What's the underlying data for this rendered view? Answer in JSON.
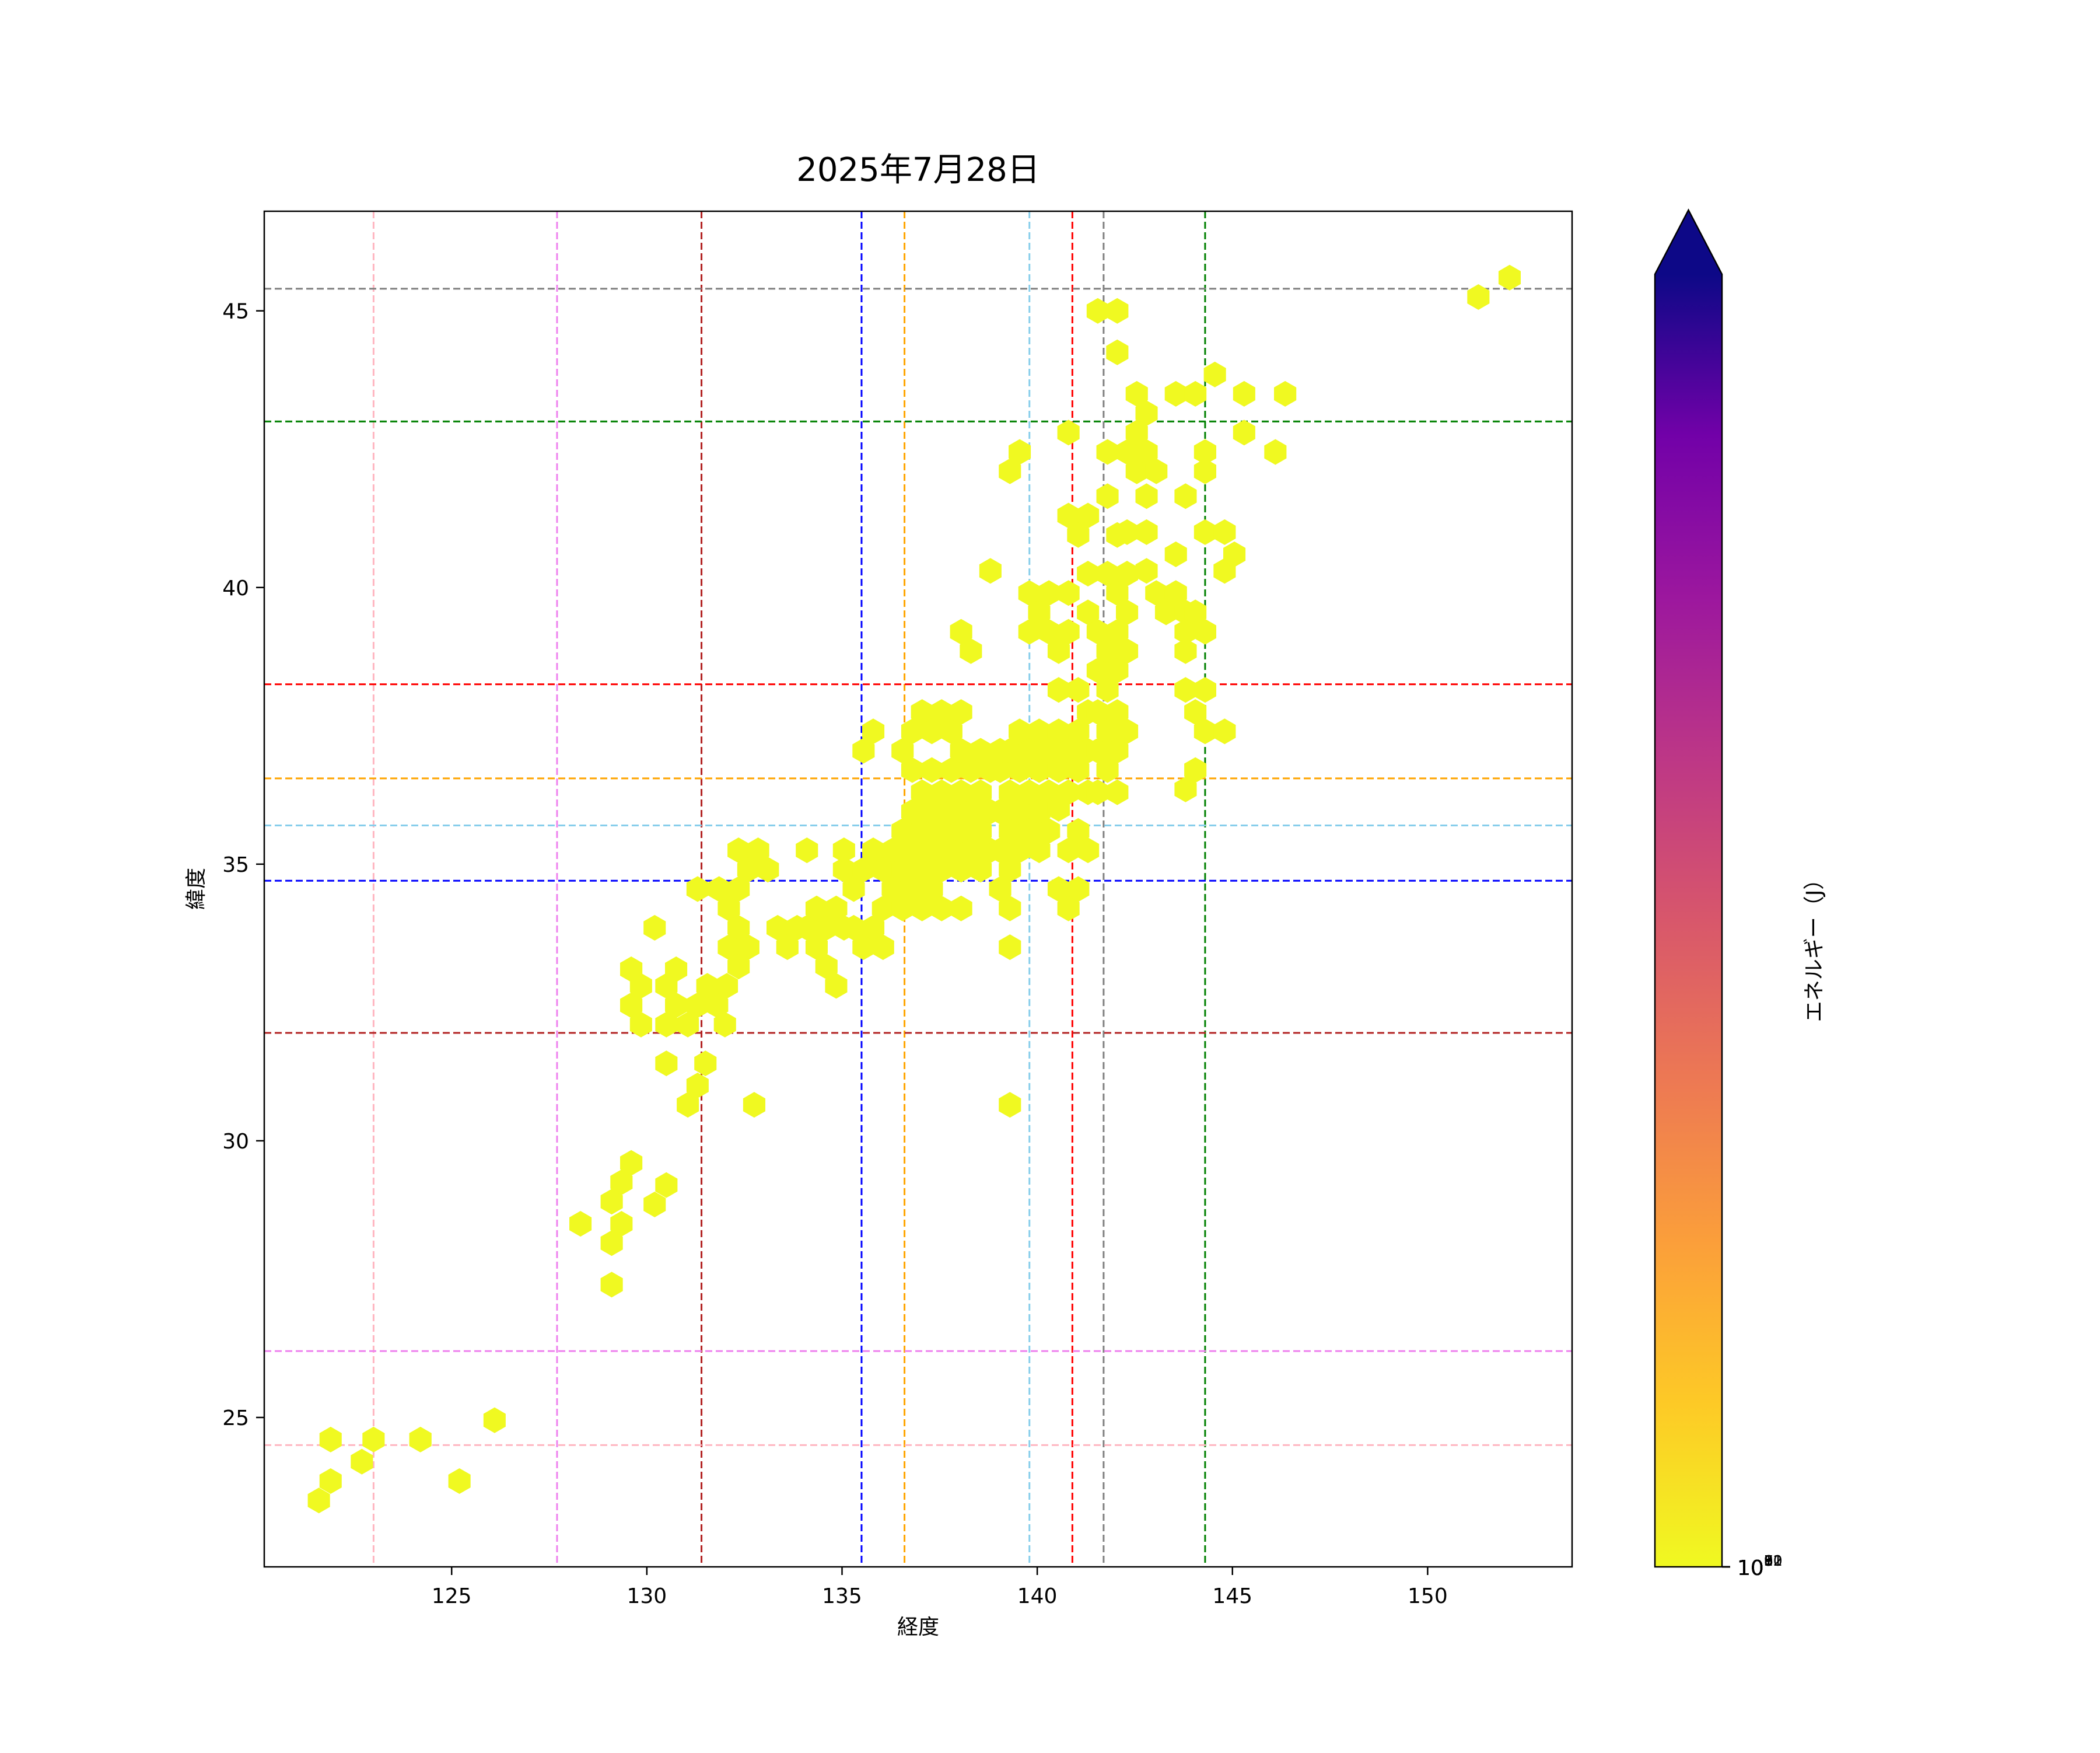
{
  "chart_data": {
    "type": "hexbin",
    "title": "2025年7月28日",
    "xlabel": "経度",
    "ylabel": "緯度",
    "xlim": [
      120.2,
      153.7
    ],
    "ylim": [
      22.3,
      46.8
    ],
    "xticks": [
      125,
      130,
      135,
      140,
      145,
      150
    ],
    "yticks": [
      25,
      30,
      35,
      40,
      45
    ],
    "colorbar": {
      "label": "エネルギー（J）",
      "scale": "log",
      "range": [
        1e-16,
        0
      ],
      "ticks": [
        {
          "exp": 5,
          "label": "10",
          "sup": "5"
        },
        {
          "exp": 6,
          "label": "10",
          "sup": "6"
        },
        {
          "exp": 7,
          "label": "10",
          "sup": "7"
        },
        {
          "exp": 8,
          "label": "10",
          "sup": "8"
        },
        {
          "exp": 9,
          "label": "10",
          "sup": "9"
        },
        {
          "exp": 10,
          "label": "10",
          "sup": "10"
        },
        {
          "exp": 11,
          "label": "10",
          "sup": "11"
        },
        {
          "exp": 12,
          "label": "10",
          "sup": "12"
        }
      ],
      "extend": "max",
      "colormap": "plasma_r"
    },
    "vlines": [
      {
        "x": 123.0,
        "color": "#ffb6c1"
      },
      {
        "x": 127.7,
        "color": "#ee82ee"
      },
      {
        "x": 131.4,
        "color": "#b22222"
      },
      {
        "x": 135.5,
        "color": "#0000ff"
      },
      {
        "x": 136.6,
        "color": "#ffa500"
      },
      {
        "x": 139.8,
        "color": "#87ceeb"
      },
      {
        "x": 140.9,
        "color": "#ff0000"
      },
      {
        "x": 141.7,
        "color": "#808080"
      },
      {
        "x": 144.3,
        "color": "#008000"
      }
    ],
    "hlines": [
      {
        "y": 45.4,
        "color": "#808080"
      },
      {
        "y": 43.0,
        "color": "#008000"
      },
      {
        "y": 38.25,
        "color": "#ff0000"
      },
      {
        "y": 36.55,
        "color": "#ffa500"
      },
      {
        "y": 35.7,
        "color": "#87ceeb"
      },
      {
        "y": 34.7,
        "color": "#0000ff"
      },
      {
        "y": 31.95,
        "color": "#b22222"
      },
      {
        "y": 26.2,
        "color": "#ee82ee"
      },
      {
        "y": 24.5,
        "color": "#ffb6c1"
      }
    ],
    "bins": [
      [
        121.6,
        23.5,
        9.3
      ],
      [
        121.9,
        23.85,
        9.5
      ],
      [
        121.9,
        24.6,
        8.7
      ],
      [
        122.7,
        24.2,
        8.8
      ],
      [
        123.0,
        24.6,
        6.6
      ],
      [
        124.2,
        24.6,
        6.0
      ],
      [
        125.2,
        23.85,
        8.5
      ],
      [
        126.1,
        24.95,
        8.6
      ],
      [
        128.3,
        28.5,
        8.5
      ],
      [
        129.1,
        28.15,
        6.8
      ],
      [
        129.1,
        28.9,
        10.4
      ],
      [
        129.1,
        27.4,
        7.6
      ],
      [
        129.35,
        29.25,
        10.0
      ],
      [
        129.35,
        28.5,
        9.0
      ],
      [
        129.6,
        29.6,
        8.6
      ],
      [
        130.2,
        28.85,
        7.8
      ],
      [
        130.5,
        29.2,
        8.8
      ],
      [
        129.6,
        33.1,
        5.7
      ],
      [
        129.6,
        32.45,
        6.7
      ],
      [
        129.85,
        32.1,
        6.7
      ],
      [
        129.85,
        32.8,
        7.5
      ],
      [
        130.2,
        33.85,
        6.8
      ],
      [
        130.5,
        32.8,
        6.0
      ],
      [
        130.5,
        32.1,
        5.3
      ],
      [
        130.75,
        32.45,
        6.7
      ],
      [
        130.75,
        33.1,
        6.0
      ],
      [
        130.5,
        31.4,
        6.5
      ],
      [
        131.05,
        30.65,
        7.8
      ],
      [
        131.3,
        31.0,
        8.0
      ],
      [
        131.5,
        31.4,
        8.8
      ],
      [
        131.05,
        32.1,
        6.8
      ],
      [
        131.3,
        32.45,
        8.6
      ],
      [
        131.55,
        32.8,
        6.3
      ],
      [
        131.8,
        32.45,
        6.9
      ],
      [
        132.0,
        32.1,
        6.6
      ],
      [
        132.05,
        32.8,
        7.6
      ],
      [
        131.3,
        34.55,
        6.1
      ],
      [
        131.85,
        34.55,
        5.6
      ],
      [
        132.1,
        34.2,
        5.5
      ],
      [
        132.35,
        34.55,
        5.6
      ],
      [
        132.35,
        33.85,
        5.8
      ],
      [
        132.6,
        33.5,
        7.0
      ],
      [
        132.1,
        33.5,
        6.4
      ],
      [
        132.35,
        33.15,
        7.5
      ],
      [
        132.75,
        30.65,
        9.4
      ],
      [
        132.35,
        35.25,
        5.5
      ],
      [
        132.6,
        34.9,
        6.3
      ],
      [
        132.85,
        35.25,
        6.0
      ],
      [
        133.1,
        34.9,
        6.3
      ],
      [
        133.35,
        33.85,
        6.3
      ],
      [
        133.6,
        33.5,
        5.6
      ],
      [
        133.85,
        33.85,
        6.7
      ],
      [
        134.1,
        33.85,
        6.3
      ],
      [
        134.1,
        35.25,
        5.8
      ],
      [
        134.35,
        34.2,
        6.4
      ],
      [
        134.35,
        33.5,
        6.3
      ],
      [
        134.6,
        33.85,
        6.3
      ],
      [
        134.6,
        33.15,
        6.2
      ],
      [
        134.85,
        32.8,
        6.7
      ],
      [
        134.85,
        34.2,
        6.6
      ],
      [
        135.05,
        33.85,
        6.5
      ],
      [
        135.05,
        34.9,
        7.0
      ],
      [
        135.05,
        35.25,
        6.8
      ],
      [
        135.3,
        33.85,
        7.6
      ],
      [
        135.3,
        34.55,
        6.5
      ],
      [
        135.55,
        33.5,
        6.1
      ],
      [
        135.55,
        34.9,
        5.8
      ],
      [
        135.55,
        37.05,
        9.7
      ],
      [
        135.8,
        37.4,
        8.9
      ],
      [
        135.8,
        33.85,
        6.7
      ],
      [
        135.8,
        35.25,
        5.8
      ],
      [
        136.05,
        33.5,
        6.4
      ],
      [
        136.05,
        34.2,
        5.7
      ],
      [
        136.05,
        34.9,
        6.8
      ],
      [
        136.3,
        34.55,
        5.9
      ],
      [
        136.3,
        35.25,
        5.5
      ],
      [
        136.55,
        34.2,
        6.5
      ],
      [
        136.55,
        34.9,
        5.8
      ],
      [
        136.55,
        35.6,
        5.6
      ],
      [
        136.55,
        37.05,
        6.6
      ],
      [
        136.8,
        34.55,
        9.0
      ],
      [
        136.8,
        35.25,
        5.9
      ],
      [
        136.8,
        35.95,
        6.6
      ],
      [
        136.8,
        36.7,
        6.6
      ],
      [
        136.8,
        37.4,
        6.6
      ],
      [
        137.05,
        34.2,
        9.1
      ],
      [
        137.05,
        34.9,
        6.8
      ],
      [
        137.05,
        35.6,
        5.6
      ],
      [
        137.05,
        36.3,
        5.9
      ],
      [
        137.05,
        37.75,
        6.1
      ],
      [
        137.3,
        34.55,
        8.7
      ],
      [
        137.3,
        35.25,
        5.6
      ],
      [
        137.3,
        35.95,
        6.0
      ],
      [
        137.3,
        36.7,
        6.6
      ],
      [
        137.3,
        37.4,
        6.8
      ],
      [
        137.55,
        34.2,
        9.1
      ],
      [
        137.55,
        34.9,
        6.6
      ],
      [
        137.55,
        35.6,
        5.6
      ],
      [
        137.55,
        36.3,
        5.8
      ],
      [
        137.55,
        37.75,
        7.0
      ],
      [
        137.8,
        35.25,
        6.2
      ],
      [
        137.8,
        35.95,
        6.2
      ],
      [
        137.8,
        36.7,
        5.9
      ],
      [
        137.8,
        37.4,
        6.8
      ],
      [
        138.05,
        34.2,
        7.0
      ],
      [
        138.05,
        34.9,
        6.6
      ],
      [
        138.05,
        35.6,
        8.8
      ],
      [
        138.05,
        36.3,
        6.2
      ],
      [
        138.05,
        37.05,
        5.6
      ],
      [
        138.05,
        37.75,
        7.4
      ],
      [
        138.05,
        39.2,
        7.7
      ],
      [
        138.3,
        35.25,
        6.2
      ],
      [
        138.3,
        35.95,
        5.8
      ],
      [
        138.3,
        36.7,
        6.4
      ],
      [
        138.3,
        38.85,
        7.2
      ],
      [
        138.55,
        34.9,
        6.4
      ],
      [
        138.55,
        35.6,
        6.1
      ],
      [
        138.55,
        36.3,
        5.3
      ],
      [
        138.55,
        37.05,
        5.6
      ],
      [
        138.8,
        35.25,
        6.5
      ],
      [
        138.8,
        35.95,
        6.1
      ],
      [
        138.8,
        36.7,
        6.0
      ],
      [
        138.8,
        40.3,
        7.6
      ],
      [
        139.05,
        34.55,
        7.2
      ],
      [
        139.05,
        35.25,
        5.6
      ],
      [
        139.05,
        35.95,
        5.9
      ],
      [
        139.05,
        36.7,
        6.1
      ],
      [
        139.05,
        37.05,
        5.3
      ],
      [
        139.3,
        34.2,
        7.3
      ],
      [
        139.3,
        34.9,
        6.6
      ],
      [
        139.3,
        35.6,
        7.0
      ],
      [
        139.3,
        36.3,
        6.3
      ],
      [
        139.3,
        37.05,
        5.3
      ],
      [
        139.3,
        33.5,
        8.0
      ],
      [
        139.3,
        30.65,
        9.5
      ],
      [
        139.3,
        42.1,
        7.0
      ],
      [
        139.55,
        35.25,
        7.8
      ],
      [
        139.55,
        35.95,
        6.1
      ],
      [
        139.55,
        36.7,
        6.1
      ],
      [
        139.55,
        37.4,
        5.5
      ],
      [
        139.55,
        42.45,
        6.5
      ],
      [
        139.8,
        35.6,
        6.1
      ],
      [
        139.8,
        36.3,
        6.6
      ],
      [
        139.8,
        37.05,
        5.3
      ],
      [
        139.8,
        39.2,
        7.4
      ],
      [
        139.8,
        39.9,
        6.8
      ],
      [
        140.05,
        35.25,
        6.6
      ],
      [
        140.05,
        35.95,
        5.9
      ],
      [
        140.05,
        36.7,
        6.4
      ],
      [
        140.05,
        37.4,
        6.6
      ],
      [
        140.05,
        39.55,
        6.8
      ],
      [
        140.3,
        35.6,
        5.8
      ],
      [
        140.3,
        36.3,
        6.4
      ],
      [
        140.3,
        37.05,
        6.0
      ],
      [
        140.3,
        39.9,
        5.3
      ],
      [
        140.3,
        39.2,
        5.8
      ],
      [
        140.55,
        36.0,
        8.0
      ],
      [
        140.55,
        36.7,
        6.4
      ],
      [
        140.55,
        37.4,
        6.2
      ],
      [
        140.55,
        38.15,
        6.8
      ],
      [
        140.55,
        38.85,
        6.0
      ],
      [
        140.55,
        34.55,
        7.8
      ],
      [
        140.8,
        35.25,
        6.6
      ],
      [
        140.8,
        36.3,
        7.0
      ],
      [
        140.8,
        37.05,
        6.8
      ],
      [
        140.8,
        34.2,
        7.8
      ],
      [
        140.8,
        39.2,
        6.3
      ],
      [
        140.8,
        39.9,
        5.8
      ],
      [
        140.8,
        41.3,
        6.0
      ],
      [
        140.8,
        42.8,
        7.7
      ],
      [
        141.05,
        35.6,
        7.0
      ],
      [
        141.05,
        36.7,
        7.2
      ],
      [
        141.05,
        37.4,
        6.8
      ],
      [
        141.05,
        38.15,
        6.7
      ],
      [
        141.05,
        40.95,
        6.6
      ],
      [
        141.05,
        34.55,
        7.4
      ],
      [
        141.3,
        35.25,
        8.7
      ],
      [
        141.3,
        36.3,
        7.2
      ],
      [
        141.3,
        37.05,
        6.6
      ],
      [
        141.3,
        37.75,
        6.6
      ],
      [
        141.3,
        39.55,
        6.6
      ],
      [
        141.3,
        40.25,
        5.7
      ],
      [
        141.3,
        41.3,
        7.1
      ],
      [
        141.55,
        36.3,
        9.2
      ],
      [
        141.55,
        37.05,
        7.2
      ],
      [
        141.55,
        37.75,
        10.2
      ],
      [
        141.55,
        38.5,
        6.6
      ],
      [
        141.55,
        39.2,
        7.2
      ],
      [
        141.55,
        45.0,
        6.4
      ],
      [
        141.8,
        36.7,
        7.6
      ],
      [
        141.8,
        37.4,
        7.2
      ],
      [
        141.8,
        38.15,
        10.0
      ],
      [
        141.8,
        38.85,
        6.6
      ],
      [
        141.8,
        40.25,
        6.1
      ],
      [
        141.8,
        41.65,
        6.5
      ],
      [
        141.8,
        42.45,
        7.1
      ],
      [
        142.05,
        36.3,
        8.6
      ],
      [
        142.05,
        37.05,
        7.4
      ],
      [
        142.05,
        37.75,
        7.9
      ],
      [
        142.05,
        38.5,
        7.6
      ],
      [
        142.05,
        39.2,
        6.2
      ],
      [
        142.05,
        39.9,
        6.2
      ],
      [
        142.05,
        40.95,
        6.5
      ],
      [
        142.05,
        44.25,
        6.4
      ],
      [
        142.05,
        45.0,
        6.0
      ],
      [
        142.3,
        37.4,
        7.0
      ],
      [
        142.3,
        38.85,
        6.3
      ],
      [
        142.3,
        39.55,
        6.6
      ],
      [
        142.3,
        40.25,
        7.0
      ],
      [
        142.3,
        41.0,
        6.4
      ],
      [
        142.3,
        42.45,
        6.3
      ],
      [
        142.55,
        42.1,
        5.4
      ],
      [
        142.55,
        42.8,
        6.2
      ],
      [
        142.55,
        43.5,
        6.5
      ],
      [
        142.8,
        40.3,
        7.3
      ],
      [
        142.8,
        41.0,
        6.5
      ],
      [
        142.8,
        41.65,
        6.6
      ],
      [
        142.8,
        42.45,
        12.0
      ],
      [
        142.8,
        43.15,
        6.6
      ],
      [
        143.05,
        39.9,
        7.9
      ],
      [
        143.05,
        42.1,
        6.7
      ],
      [
        143.3,
        39.55,
        7.0
      ],
      [
        143.55,
        39.9,
        6.5
      ],
      [
        143.55,
        40.6,
        6.7
      ],
      [
        143.55,
        43.5,
        6.2
      ],
      [
        143.8,
        39.55,
        6.2
      ],
      [
        143.8,
        39.2,
        5.9
      ],
      [
        143.8,
        38.85,
        7.2
      ],
      [
        143.8,
        38.15,
        5.8
      ],
      [
        143.8,
        41.65,
        6.4
      ],
      [
        143.8,
        36.35,
        7.7
      ],
      [
        144.05,
        36.7,
        6.8
      ],
      [
        144.05,
        37.75,
        7.1
      ],
      [
        144.05,
        39.55,
        5.7
      ],
      [
        144.05,
        43.5,
        5.9
      ],
      [
        144.3,
        37.4,
        7.3
      ],
      [
        144.3,
        38.15,
        7.2
      ],
      [
        144.3,
        39.2,
        5.9
      ],
      [
        144.3,
        41.0,
        6.4
      ],
      [
        144.3,
        42.1,
        8.7
      ],
      [
        144.3,
        42.45,
        7.3
      ],
      [
        144.55,
        43.85,
        6.0
      ],
      [
        144.8,
        37.4,
        7.2
      ],
      [
        144.8,
        40.3,
        6.6
      ],
      [
        144.8,
        41.0,
        8.4
      ],
      [
        145.05,
        40.6,
        7.0
      ],
      [
        145.3,
        42.8,
        6.7
      ],
      [
        145.3,
        43.5,
        6.1
      ],
      [
        146.1,
        42.45,
        7.5
      ],
      [
        146.35,
        43.5,
        7.9
      ],
      [
        151.3,
        45.25,
        9.7
      ],
      [
        152.1,
        45.6,
        9.1
      ]
    ]
  }
}
